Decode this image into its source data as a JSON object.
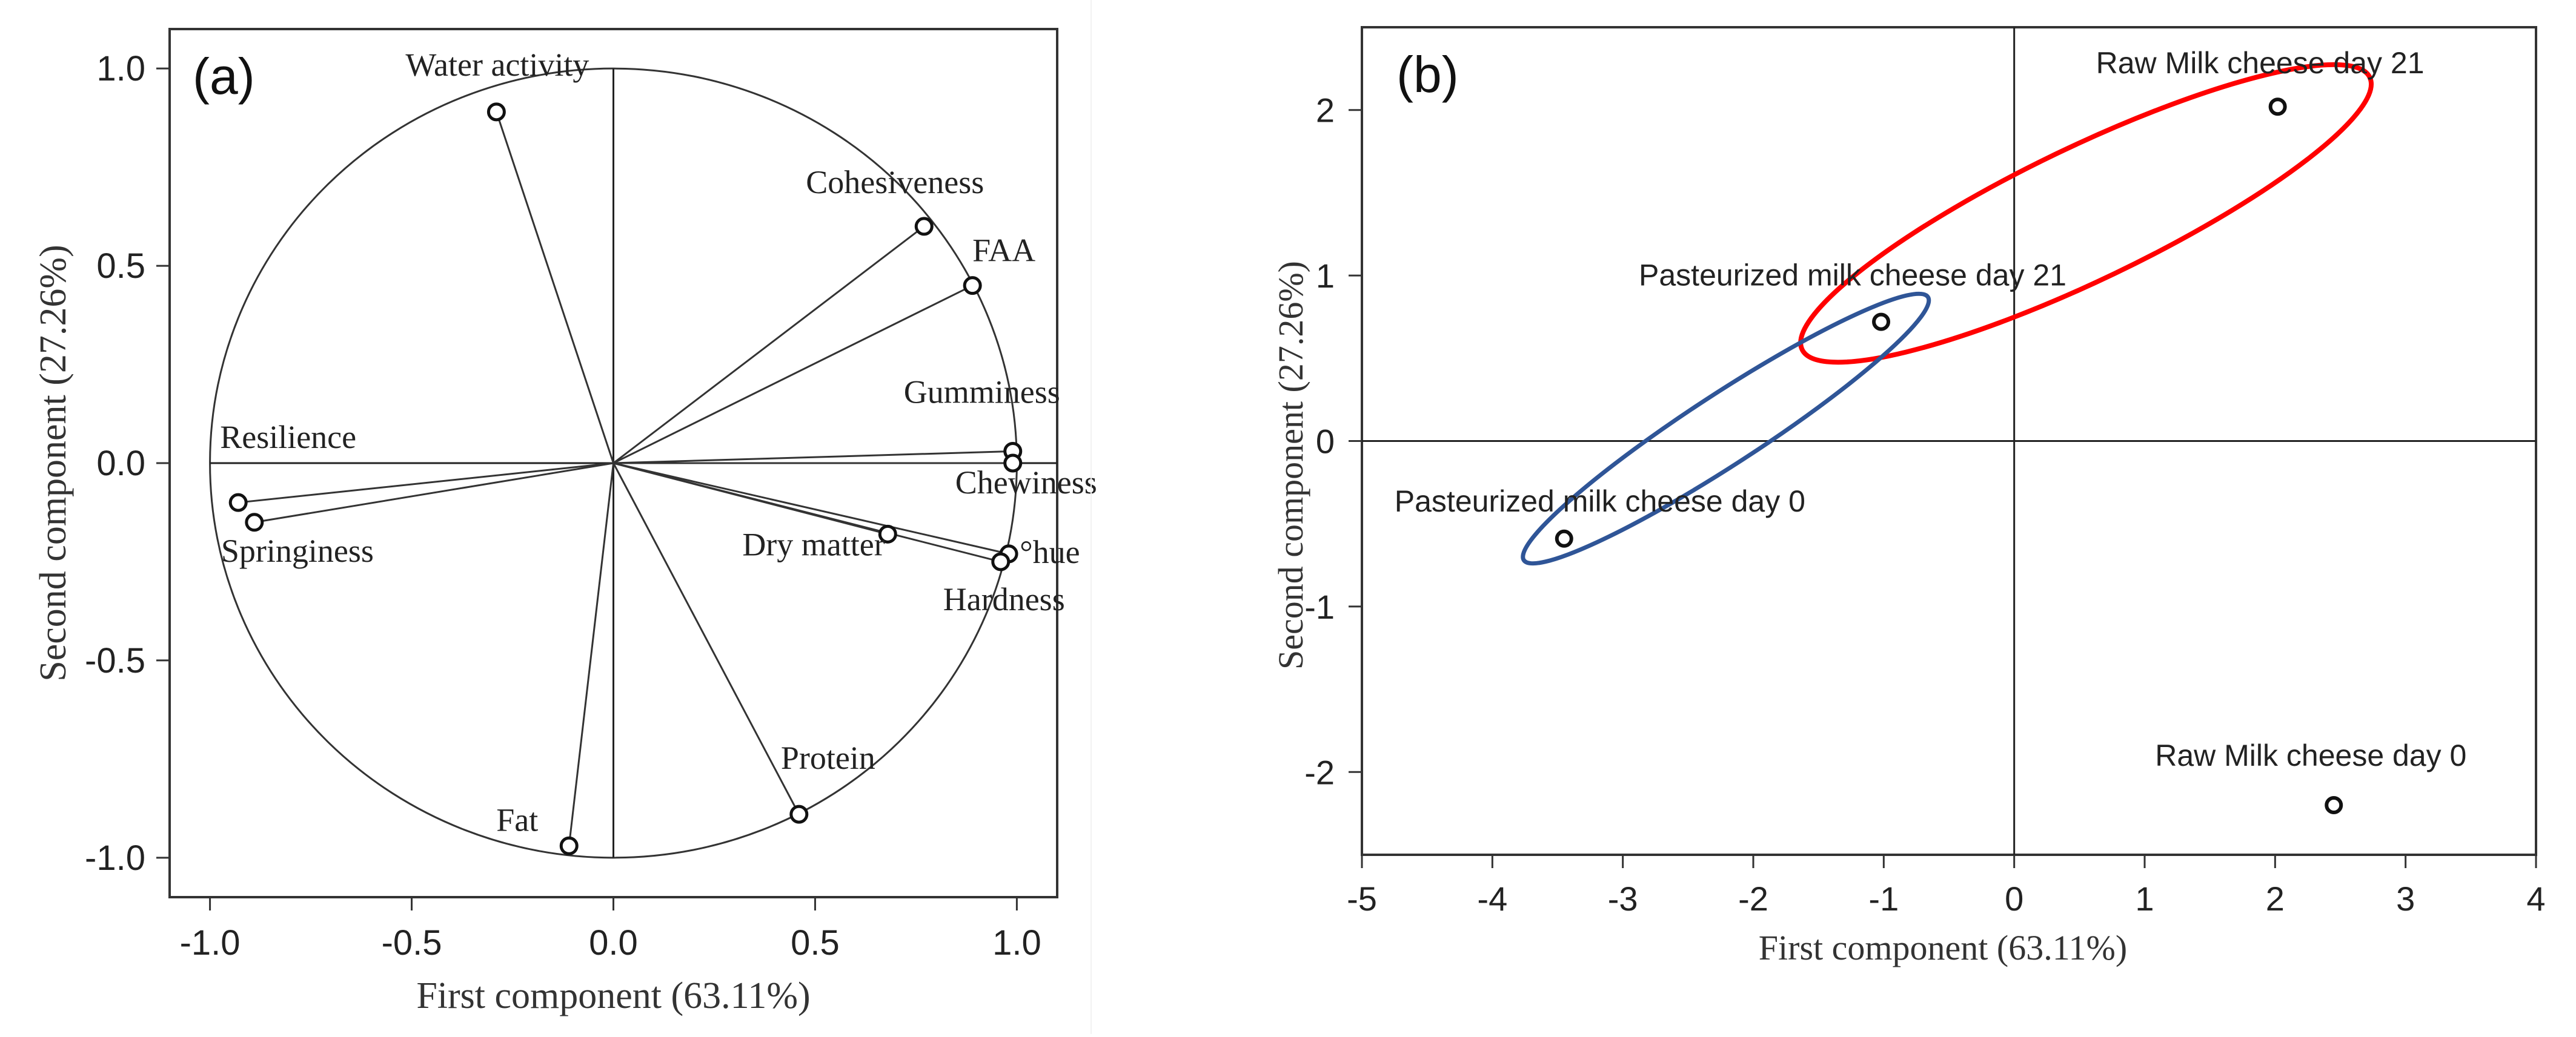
{
  "chart_data": [
    {
      "type": "scatter",
      "subtype": "pca-loadings",
      "panel_label": "(a)",
      "xlabel": "First component (63.11%)",
      "ylabel": "Second component (27.26%)",
      "xlim": [
        -1.1,
        1.1
      ],
      "ylim": [
        -1.1,
        1.1
      ],
      "xticks": [
        -1.0,
        -0.5,
        0.0,
        0.5,
        1.0
      ],
      "yticks": [
        -1.0,
        -0.5,
        0.0,
        0.5,
        1.0
      ],
      "xtick_labels": [
        "-1.0",
        "-0.5",
        "0.0",
        "0.5",
        "1.0"
      ],
      "ytick_labels": [
        "-1.0",
        "-0.5",
        "0.0",
        "0.5",
        "1.0"
      ],
      "unit_circle": true,
      "reference_lines": {
        "x": 0,
        "y": 0
      },
      "variables": [
        {
          "name": "Water activity",
          "x": -0.29,
          "y": 0.89
        },
        {
          "name": "Cohesiveness",
          "x": 0.77,
          "y": 0.6
        },
        {
          "name": "FAA",
          "x": 0.89,
          "y": 0.45
        },
        {
          "name": "Gumminess",
          "x": 0.99,
          "y": 0.03
        },
        {
          "name": "Chewiness",
          "x": 0.99,
          "y": 0.0
        },
        {
          "name": "°hue",
          "x": 0.98,
          "y": -0.23
        },
        {
          "name": "Hardness",
          "x": 0.96,
          "y": -0.25
        },
        {
          "name": "Dry matter",
          "x": 0.68,
          "y": -0.18
        },
        {
          "name": "Protein",
          "x": 0.46,
          "y": -0.89
        },
        {
          "name": "Fat",
          "x": -0.11,
          "y": -0.97
        },
        {
          "name": "Resilience",
          "x": -0.93,
          "y": -0.1
        },
        {
          "name": "Springiness",
          "x": -0.89,
          "y": -0.15
        }
      ]
    },
    {
      "type": "scatter",
      "subtype": "pca-scores",
      "panel_label": "(b)",
      "xlabel": "First component (63.11%)",
      "ylabel": "Second component (27.26%)",
      "xlim": [
        -5,
        4
      ],
      "ylim": [
        -2.5,
        2.5
      ],
      "xticks": [
        -5,
        -4,
        -3,
        -2,
        -1,
        0,
        1,
        2,
        3,
        4
      ],
      "yticks": [
        -2,
        -1,
        0,
        1,
        2
      ],
      "xtick_labels": [
        "-5",
        "-4",
        "-3",
        "-2",
        "-1",
        "0",
        "1",
        "2",
        "3",
        "4"
      ],
      "ytick_labels": [
        "-2",
        "-1",
        "0",
        "1",
        "2"
      ],
      "reference_lines": {
        "x": 0,
        "y": 0
      },
      "points": [
        {
          "name": "Raw Milk cheese day 21",
          "x": 2.02,
          "y": 2.02
        },
        {
          "name": "Pasteurized milk cheese day 21",
          "x": -1.02,
          "y": 0.72
        },
        {
          "name": "Pasteurized milk cheese day 0",
          "x": -3.45,
          "y": -0.59
        },
        {
          "name": "Raw Milk cheese day 0",
          "x": 2.45,
          "y": -2.2
        }
      ],
      "groups": [
        {
          "name": "Raw milk cheese (day 21 cluster)",
          "color": "#ff0000"
        },
        {
          "name": "Pasteurized milk cheese",
          "color": "#2f5597"
        }
      ]
    }
  ]
}
